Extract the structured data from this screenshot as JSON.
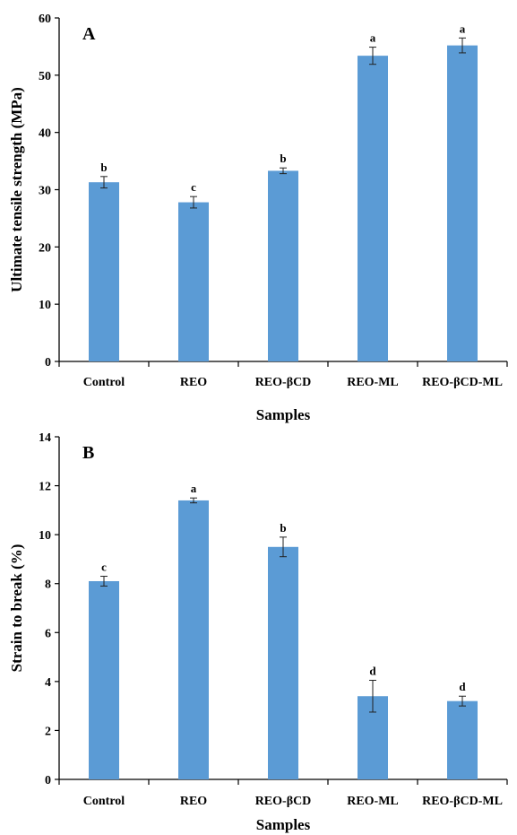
{
  "chart_data": [
    {
      "type": "bar",
      "panel_label": "A",
      "categories": [
        "Control",
        "REO",
        "REO-βCD",
        "REO-ML",
        "REO-βCD-ML"
      ],
      "values": [
        31.3,
        27.8,
        33.3,
        53.4,
        55.2
      ],
      "errors": [
        1.0,
        1.0,
        0.5,
        1.5,
        1.3
      ],
      "significance": [
        "b",
        "c",
        "b",
        "a",
        "a"
      ],
      "ylabel": "Ultimate tensile strength (MPa)",
      "xlabel": "Samples",
      "ylim": [
        0,
        60
      ],
      "yticks": [
        0,
        10,
        20,
        30,
        40,
        50,
        60
      ],
      "bar_color": "#5b9bd5",
      "grid": false
    },
    {
      "type": "bar",
      "panel_label": "B",
      "categories": [
        "Control",
        "REO",
        "REO-βCD",
        "REO-ML",
        "REO-βCD-ML"
      ],
      "values": [
        8.1,
        11.4,
        9.5,
        3.4,
        3.2
      ],
      "errors": [
        0.2,
        0.1,
        0.4,
        0.65,
        0.2
      ],
      "significance": [
        "c",
        "a",
        "b",
        "d",
        "d"
      ],
      "ylabel": "Strain to break (%)",
      "xlabel": "Samples",
      "ylim": [
        0,
        14
      ],
      "yticks": [
        0,
        2,
        4,
        6,
        8,
        10,
        12,
        14
      ],
      "bar_color": "#5b9bd5",
      "grid": false
    }
  ]
}
